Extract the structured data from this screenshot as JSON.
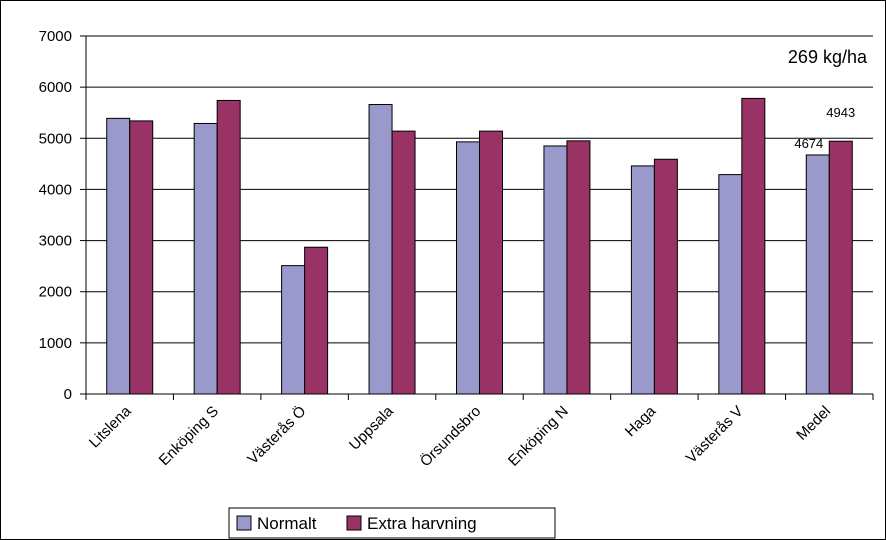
{
  "chart_data": {
    "type": "bar",
    "categories": [
      "Litslena",
      "Enköping S",
      "Västerås Ö",
      "Uppsala",
      "Örsundsbro",
      "Enköping N",
      "Haga",
      "Västerås V",
      "Medel"
    ],
    "series": [
      {
        "name": "Normalt",
        "color": "#9999cc",
        "values": [
          5390,
          5290,
          2510,
          5660,
          4930,
          4850,
          4460,
          4290,
          4674
        ]
      },
      {
        "name": "Extra harvning",
        "color": "#993366",
        "values": [
          5340,
          5740,
          2870,
          5140,
          5140,
          4950,
          4590,
          5780,
          4943
        ]
      }
    ],
    "ylim": [
      0,
      7000
    ],
    "yticks": [
      "0",
      "1000",
      "2000",
      "3000",
      "4000",
      "5000",
      "6000",
      "7000"
    ],
    "grid": true,
    "legend_position": "bottom",
    "annotation": "269 kg/ha",
    "data_labels": [
      {
        "series": 0,
        "category": 8,
        "text": "4674"
      },
      {
        "series": 1,
        "category": 8,
        "text": "4943"
      }
    ]
  }
}
